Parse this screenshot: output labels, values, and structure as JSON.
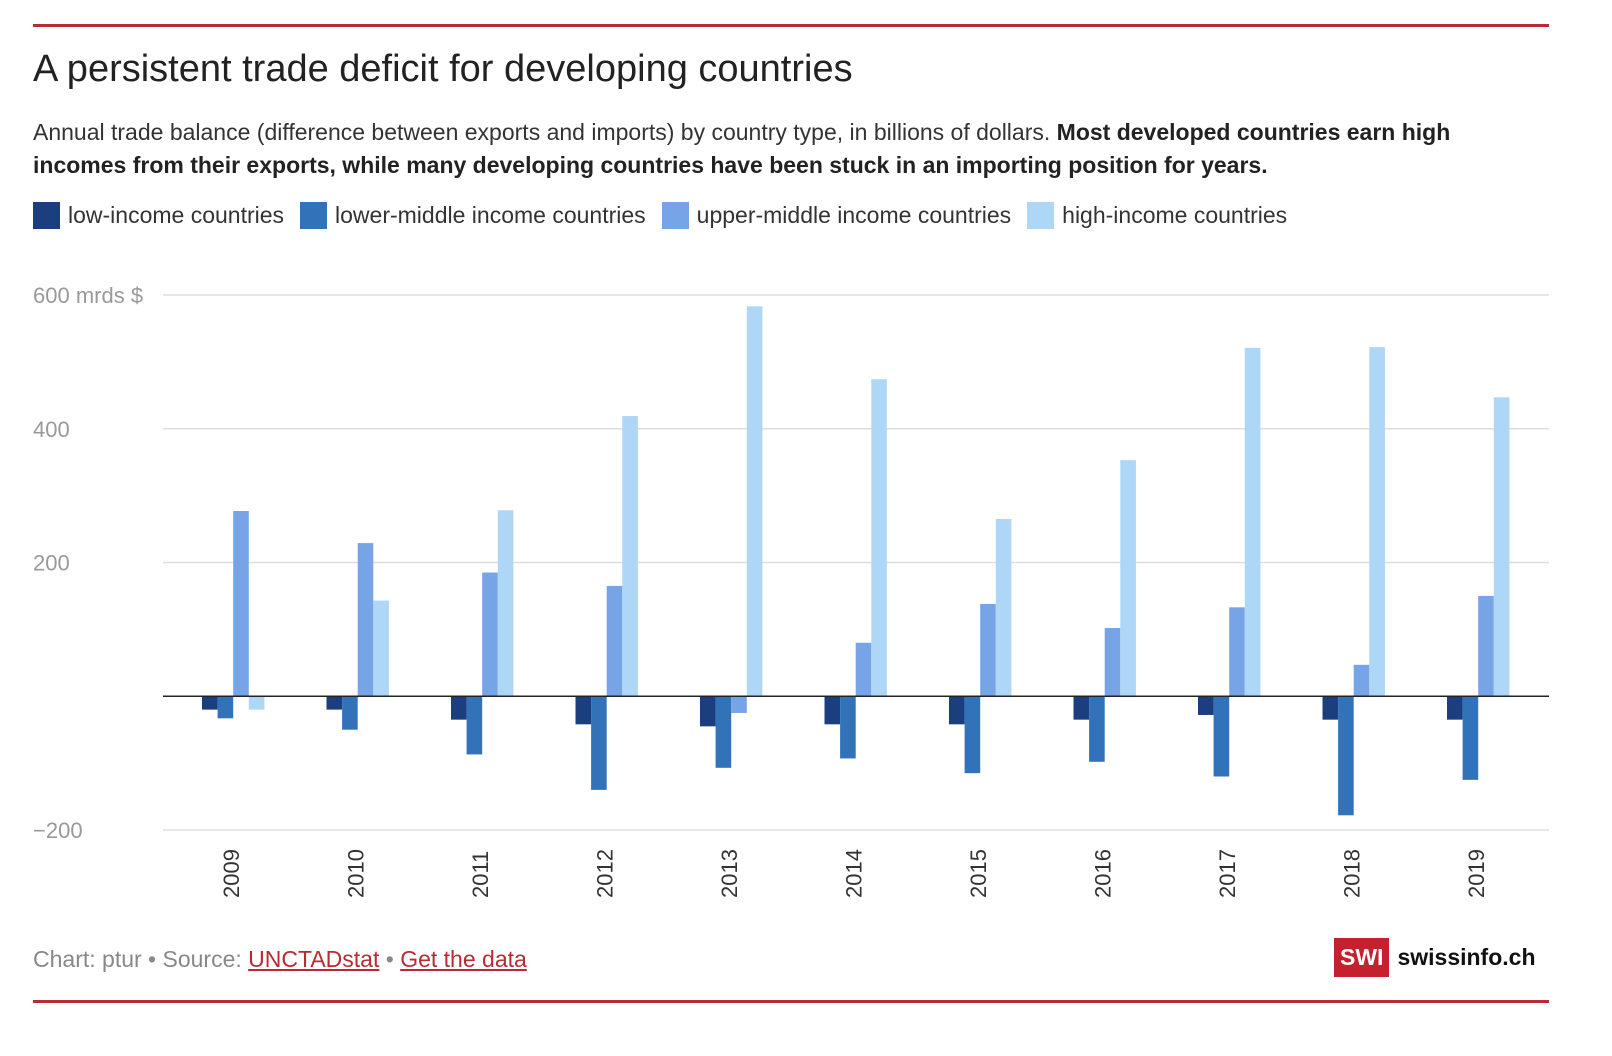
{
  "title": "A persistent trade deficit for developing countries",
  "subtitle_regular": "Annual trade balance (difference between exports and imports) by country type, in billions of dollars. ",
  "subtitle_bold": "Most developed countries earn high incomes from their exports, while many developing countries have been stuck in an importing position for years.",
  "footer": {
    "prefix": "Chart: ptur • Source: ",
    "source_link": "UNCTADstat",
    "separator": " • ",
    "data_link": "Get the data"
  },
  "logo": {
    "box": "SWI",
    "text": "swissinfo.ch"
  },
  "colors": {
    "rule": "#b72b33",
    "grid": "#dddddd",
    "axis": "#222222",
    "tick_label": "#999999"
  },
  "chart_data": {
    "type": "bar",
    "categories": [
      "2009",
      "2010",
      "2011",
      "2012",
      "2013",
      "2014",
      "2015",
      "2016",
      "2017",
      "2018",
      "2019"
    ],
    "series": [
      {
        "name": "low-income countries",
        "color": "#1b3f7e",
        "values": [
          -20,
          -20,
          -35,
          -42,
          -45,
          -42,
          -42,
          -35,
          -28,
          -35,
          -35
        ]
      },
      {
        "name": "lower-middle income countries",
        "color": "#3272b8",
        "values": [
          -33,
          -50,
          -87,
          -140,
          -107,
          -93,
          -115,
          -98,
          -120,
          -178,
          -125
        ]
      },
      {
        "name": "upper-middle income countries",
        "color": "#76a4e6",
        "values": [
          277,
          229,
          185,
          165,
          -25,
          80,
          138,
          102,
          133,
          47,
          150
        ]
      },
      {
        "name": "high-income countries",
        "color": "#add6f7",
        "values": [
          -20,
          143,
          278,
          419,
          583,
          474,
          265,
          353,
          521,
          522,
          447
        ]
      }
    ],
    "yticks": [
      {
        "value": 600,
        "label": "600 mrds $"
      },
      {
        "value": 400,
        "label": "400"
      },
      {
        "value": 200,
        "label": "200"
      },
      {
        "value": -200,
        "label": "−200"
      }
    ],
    "ylim": [
      -200,
      600
    ],
    "xlabel": "",
    "ylabel": "",
    "legend_position": "top-left",
    "grid": true
  }
}
